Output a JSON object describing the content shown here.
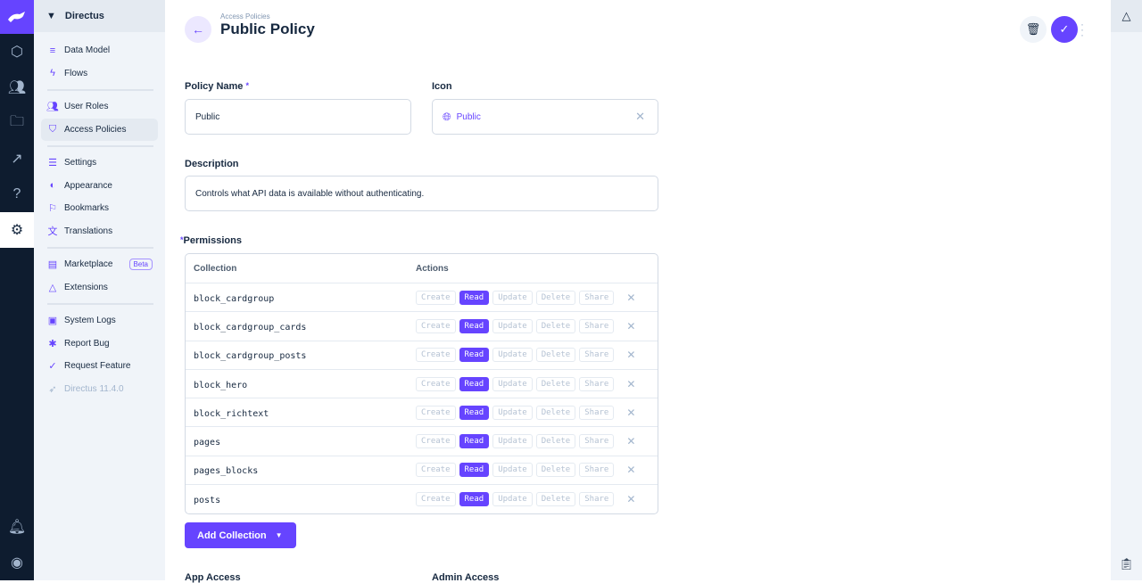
{
  "project": {
    "name": "Directus"
  },
  "nav": {
    "items": [
      {
        "label": "Data Model",
        "icon": "database-icon"
      },
      {
        "label": "Flows",
        "icon": "bolt-icon"
      },
      {
        "label": "User Roles",
        "icon": "group-icon"
      },
      {
        "label": "Access Policies",
        "icon": "shield-lock-icon"
      },
      {
        "label": "Settings",
        "icon": "tune-icon"
      },
      {
        "label": "Appearance",
        "icon": "palette-icon"
      },
      {
        "label": "Bookmarks",
        "icon": "bookmark-icon"
      },
      {
        "label": "Translations",
        "icon": "translate-icon"
      },
      {
        "label": "Marketplace",
        "icon": "storefront-icon",
        "badge": "Beta"
      },
      {
        "label": "Extensions",
        "icon": "extensions-icon"
      },
      {
        "label": "System Logs",
        "icon": "terminal-icon"
      },
      {
        "label": "Report Bug",
        "icon": "bug-icon"
      },
      {
        "label": "Request Feature",
        "icon": "verified-icon"
      }
    ],
    "version": "Directus 11.4.0"
  },
  "header": {
    "breadcrumb": "Access Policies",
    "title": "Public Policy"
  },
  "form": {
    "policy_name_label": "Policy Name",
    "policy_name": "Public",
    "icon_label": "Icon",
    "icon_value": "Public",
    "description_label": "Description",
    "description": "Controls what API data is available without authenticating.",
    "permissions_label": "Permissions",
    "add_collection": "Add Collection",
    "app_access_label": "App Access",
    "admin_access_label": "Admin Access"
  },
  "permissions": {
    "headers": [
      "Collection",
      "Actions"
    ],
    "actions": [
      "Create",
      "Read",
      "Update",
      "Delete",
      "Share"
    ],
    "rows": [
      {
        "collection": "block_cardgroup",
        "enabled": [
          "Read"
        ]
      },
      {
        "collection": "block_cardgroup_cards",
        "enabled": [
          "Read"
        ]
      },
      {
        "collection": "block_cardgroup_posts",
        "enabled": [
          "Read"
        ]
      },
      {
        "collection": "block_hero",
        "enabled": [
          "Read"
        ]
      },
      {
        "collection": "block_richtext",
        "enabled": [
          "Read"
        ]
      },
      {
        "collection": "pages",
        "enabled": [
          "Read"
        ]
      },
      {
        "collection": "pages_blocks",
        "enabled": [
          "Read"
        ]
      },
      {
        "collection": "posts",
        "enabled": [
          "Read"
        ]
      }
    ]
  },
  "colors": {
    "accent": "#6644ff",
    "rail": "#0e1c2f",
    "nav_bg": "#f0f4f9"
  }
}
